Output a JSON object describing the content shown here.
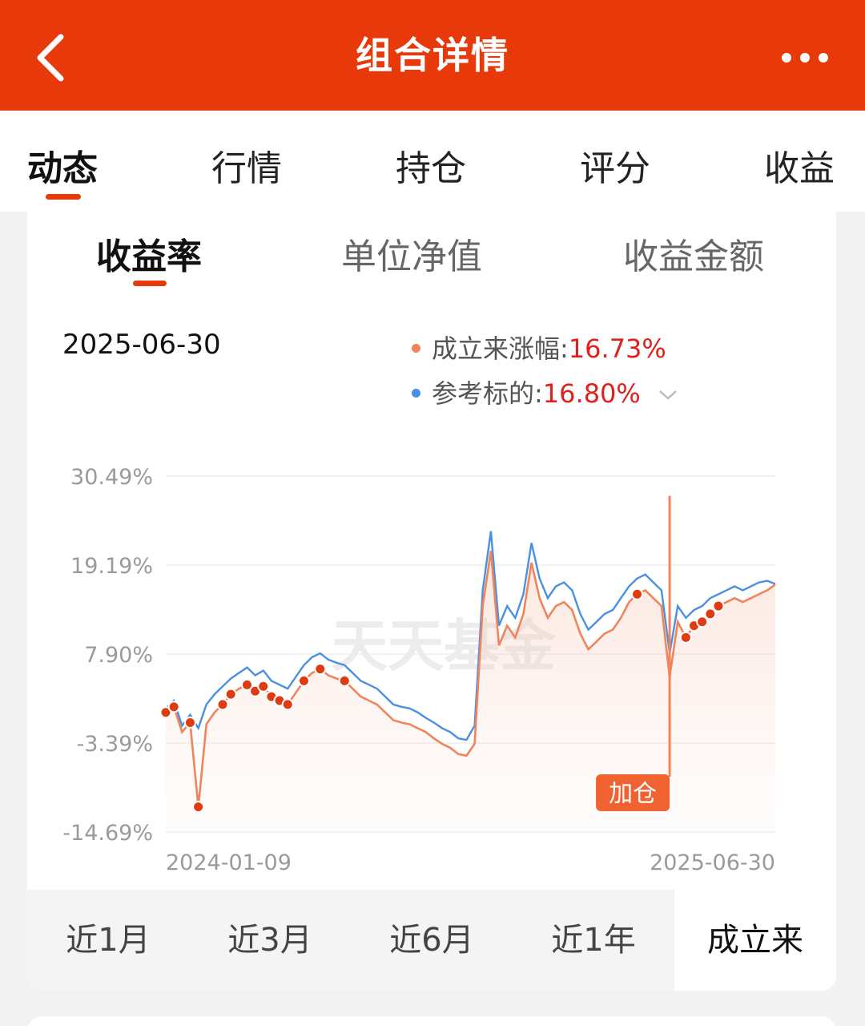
{
  "header": {
    "title": "组合详情",
    "back_icon": "chevron-left-icon",
    "more_icon": "more-horizontal-icon",
    "bg_color": "#e8390b"
  },
  "tabs": [
    {
      "label": "动态",
      "active": true
    },
    {
      "label": "行情",
      "active": false
    },
    {
      "label": "持仓",
      "active": false
    },
    {
      "label": "评分",
      "active": false
    },
    {
      "label": "收益",
      "active": false
    }
  ],
  "subtabs": [
    {
      "label": "收益率",
      "active": true
    },
    {
      "label": "单位净值",
      "active": false
    },
    {
      "label": "收益金额",
      "active": false
    }
  ],
  "chart_header": {
    "date": "2025-06-30",
    "legend": [
      {
        "name": "成立来涨幅",
        "sep": ":",
        "value": "16.73%",
        "color": "#f0845a"
      },
      {
        "name": "参考标的",
        "sep": ":",
        "value": "16.80%",
        "color": "#4a90e2"
      }
    ]
  },
  "chart_data": {
    "type": "line",
    "watermark": "天天基金",
    "x_start": "2024-01-09",
    "x_end": "2025-06-30",
    "y_ticks": [
      "30.49%",
      "19.19%",
      "7.90%",
      "-3.39%",
      "-14.69%"
    ],
    "ylim": [
      -14.69,
      30.49
    ],
    "annotation": {
      "label": "加仓",
      "date": "2025-05"
    },
    "series": [
      {
        "name": "成立来涨幅",
        "color": "#f0845a",
        "values": [
          0.5,
          1.2,
          -2.0,
          -0.8,
          -11.5,
          -1.0,
          0.5,
          1.5,
          2.8,
          3.5,
          4.0,
          3.2,
          3.8,
          2.5,
          2.0,
          1.5,
          3.0,
          4.5,
          5.5,
          6.0,
          5.2,
          4.8,
          4.5,
          3.5,
          2.5,
          2.0,
          1.5,
          0.5,
          -0.5,
          -0.8,
          -1.0,
          -1.5,
          -2.0,
          -2.8,
          -3.5,
          -4.0,
          -4.8,
          -5.0,
          -3.5,
          14.0,
          21.0,
          9.0,
          11.5,
          10.0,
          13.0,
          19.5,
          15.0,
          12.5,
          14.0,
          14.5,
          13.5,
          10.5,
          8.5,
          9.5,
          10.5,
          11.0,
          12.5,
          14.5,
          15.5,
          16.0,
          15.0,
          14.0,
          5.0,
          12.0,
          10.0,
          11.5,
          12.0,
          13.0,
          14.0,
          14.5,
          15.0,
          14.5,
          15.0,
          15.5,
          16.0,
          16.73
        ]
      },
      {
        "name": "参考标的",
        "color": "#4a90e2",
        "values": [
          1.0,
          2.0,
          -1.2,
          0.2,
          -1.5,
          1.5,
          2.8,
          3.8,
          4.8,
          5.5,
          6.2,
          5.2,
          5.8,
          4.5,
          4.0,
          3.5,
          5.0,
          6.5,
          7.5,
          8.0,
          7.2,
          6.8,
          6.5,
          5.5,
          4.5,
          4.0,
          3.5,
          2.5,
          1.5,
          1.2,
          1.0,
          0.5,
          -0.2,
          -0.8,
          -1.5,
          -2.0,
          -2.8,
          -3.0,
          -1.2,
          16.0,
          23.5,
          11.5,
          14.0,
          12.5,
          15.5,
          22.0,
          17.5,
          15.0,
          16.5,
          17.0,
          16.0,
          13.0,
          11.0,
          12.0,
          13.0,
          13.5,
          15.0,
          16.5,
          17.5,
          18.0,
          17.0,
          16.0,
          8.0,
          14.0,
          12.5,
          13.5,
          14.0,
          15.0,
          15.5,
          16.0,
          16.5,
          16.0,
          16.5,
          17.0,
          17.2,
          16.8
        ]
      }
    ],
    "trade_markers": [
      0,
      1,
      3,
      4,
      7,
      8,
      10,
      11,
      12,
      13,
      14,
      15,
      17,
      19,
      22,
      58,
      64,
      65,
      66,
      67,
      68
    ]
  },
  "periods": [
    {
      "label": "近1月",
      "active": false
    },
    {
      "label": "近3月",
      "active": false
    },
    {
      "label": "近6月",
      "active": false
    },
    {
      "label": "近1年",
      "active": false
    },
    {
      "label": "成立来",
      "active": true
    }
  ]
}
